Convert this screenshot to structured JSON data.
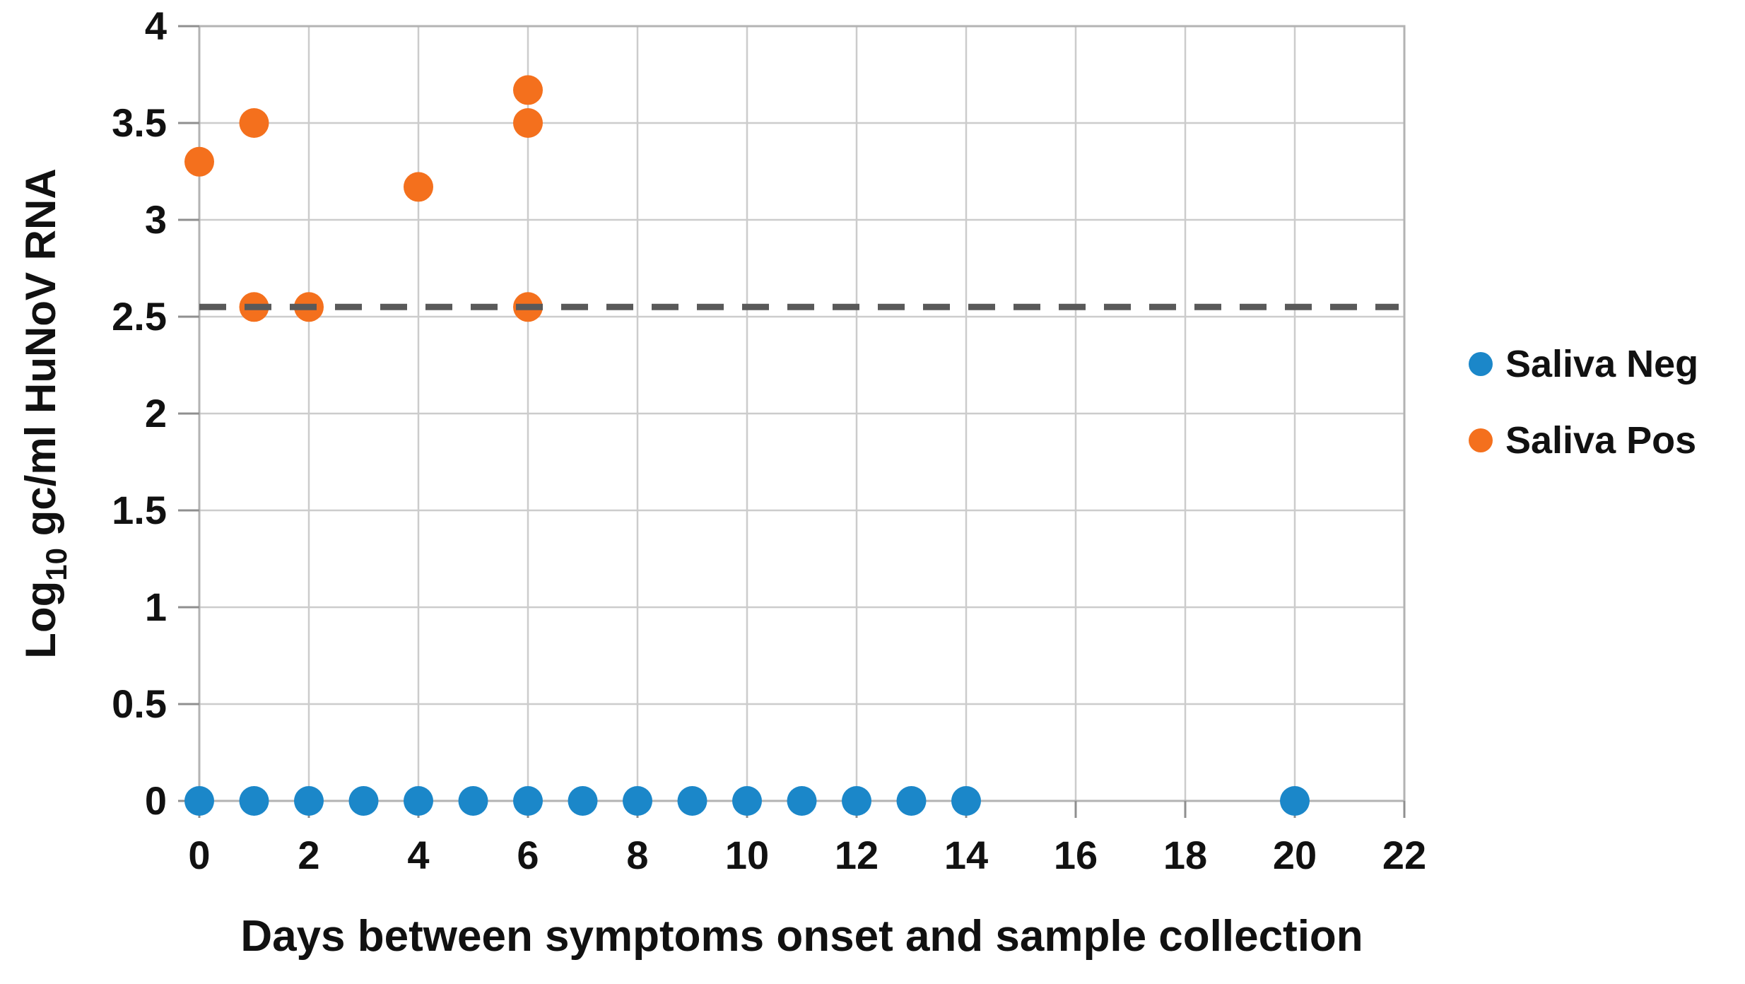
{
  "figure": {
    "background": "#ffffff"
  },
  "chart_data": {
    "type": "scatter",
    "title": "",
    "xlabel": "Days between symptoms onset and sample collection",
    "ylabel": "Log10 gc/ml HuNoV RNA",
    "ylabel_parts": {
      "base": "Log",
      "subscript": "10",
      "rest": "gc/ml HuNoV RNA"
    },
    "xlim": [
      0,
      22
    ],
    "ylim": [
      0,
      4
    ],
    "x_ticks": [
      0,
      2,
      4,
      6,
      8,
      10,
      12,
      14,
      16,
      18,
      20,
      22
    ],
    "x_tick_labels": [
      "0",
      "2",
      "4",
      "6",
      "8",
      "10",
      "12",
      "14",
      "16",
      "18",
      "20",
      "22"
    ],
    "y_ticks": [
      0,
      0.5,
      1,
      1.5,
      2,
      2.5,
      3,
      3.5,
      4
    ],
    "y_tick_labels": [
      "0",
      "0.5",
      "1",
      "1.5",
      "2",
      "2.5",
      "3",
      "3.5",
      "4"
    ],
    "grid": true,
    "legend_position": "right",
    "series": [
      {
        "name": "Saliva Neg",
        "color": "#1b87c9",
        "marker": "circle",
        "points": [
          [
            0,
            0
          ],
          [
            1,
            0
          ],
          [
            2,
            0
          ],
          [
            3,
            0
          ],
          [
            4,
            0
          ],
          [
            5,
            0
          ],
          [
            6,
            0
          ],
          [
            7,
            0
          ],
          [
            8,
            0
          ],
          [
            9,
            0
          ],
          [
            10,
            0
          ],
          [
            11,
            0
          ],
          [
            12,
            0
          ],
          [
            13,
            0
          ],
          [
            14,
            0
          ],
          [
            20,
            0
          ]
        ]
      },
      {
        "name": "Saliva Pos",
        "color": "#f4701d",
        "marker": "circle",
        "points": [
          [
            0,
            3.3
          ],
          [
            1,
            3.5
          ],
          [
            1,
            2.55
          ],
          [
            2,
            2.55
          ],
          [
            4,
            3.17
          ],
          [
            6,
            3.67
          ],
          [
            6,
            3.5
          ],
          [
            6,
            2.55
          ]
        ]
      }
    ],
    "reference_line": {
      "value": 2.55,
      "orientation": "horizontal",
      "style": "dashed",
      "color": "#595959"
    }
  },
  "style_colors": {
    "gridline": "#cccccc",
    "frame": "#b3b3b3",
    "tick": "#8f8f8f",
    "text": "#111111"
  }
}
